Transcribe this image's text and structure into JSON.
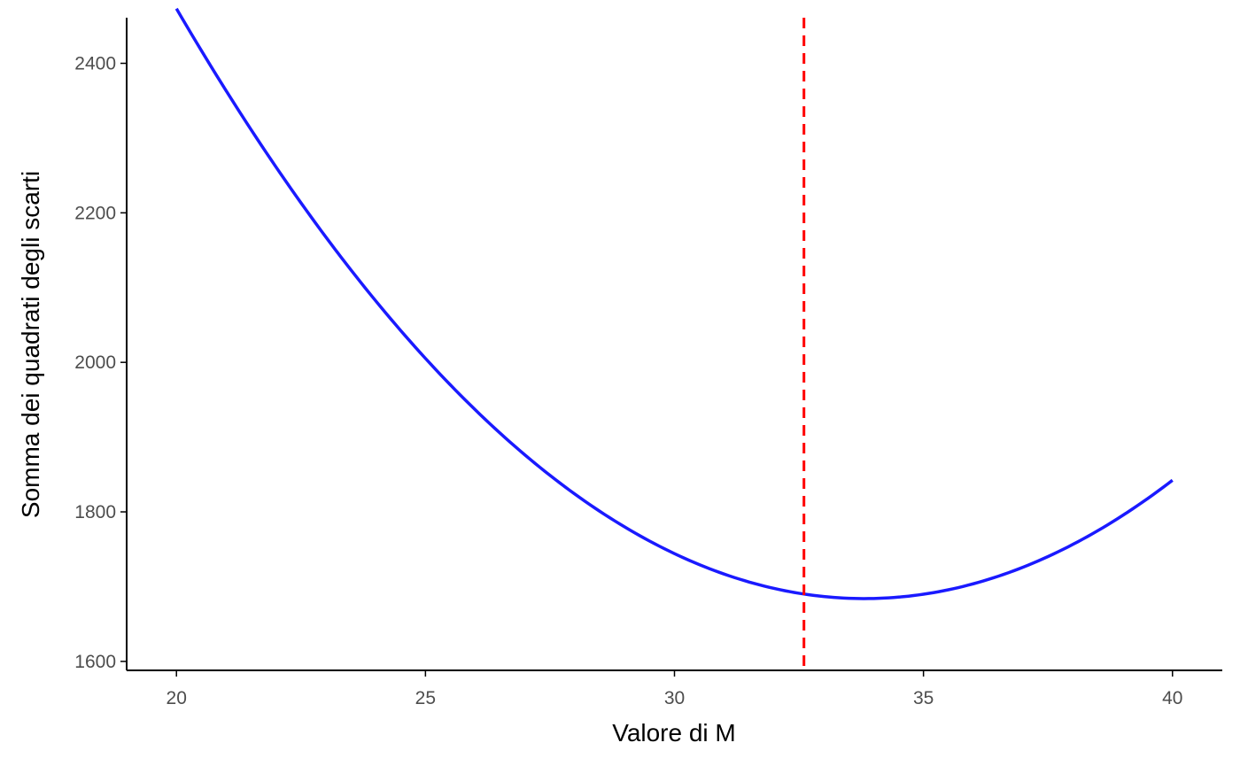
{
  "chart_data": {
    "type": "line",
    "xlabel": "Valore di M",
    "ylabel": "Somma dei quadrati degli scarti",
    "xlim": [
      19,
      41
    ],
    "ylim": [
      1588,
      2461
    ],
    "x_ticks": [
      "20",
      "25",
      "30",
      "35",
      "40"
    ],
    "y_ticks": [
      "1600",
      "1800",
      "2000",
      "2200",
      "2400"
    ],
    "grid": false,
    "series": [
      {
        "color": "#1a1aff",
        "x": [
          20,
          21,
          22,
          23,
          24,
          25,
          26,
          27,
          28,
          29,
          30,
          31,
          32,
          32.6,
          33,
          34,
          35,
          36,
          37,
          38,
          39,
          40
        ],
        "y": [
          2420,
          2336,
          2256,
          2180,
          2108,
          2040,
          1976,
          1916,
          1860,
          1808,
          1760,
          1716,
          1676,
          1627,
          1629,
          1645,
          1665,
          1691,
          1722,
          1762,
          1810,
          1899
        ]
      }
    ],
    "vline": {
      "x": 32.6,
      "color": "#ff0000",
      "style": "dashed"
    }
  }
}
